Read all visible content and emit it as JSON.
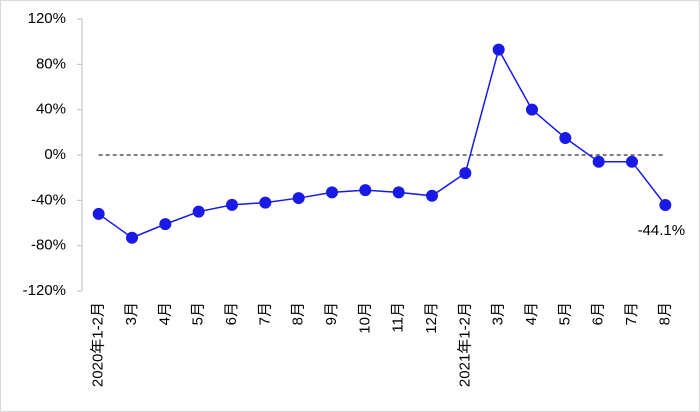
{
  "chart_data": {
    "type": "line",
    "categories": [
      "2020年1-2月",
      "3月",
      "4月",
      "5月",
      "6月",
      "7月",
      "8月",
      "9月",
      "10月",
      "11月",
      "12月",
      "2021年1-2月",
      "3月",
      "4月",
      "5月",
      "6月",
      "7月",
      "8月"
    ],
    "series": [
      {
        "color": "#1a1ae6",
        "values": [
          -52,
          -73,
          -61,
          -50,
          -44,
          -42,
          -38,
          -33,
          -31,
          -33,
          -36,
          -16,
          93,
          40,
          15,
          -6,
          -6,
          -44.1
        ],
        "value_labels": [
          null,
          null,
          null,
          null,
          null,
          null,
          null,
          null,
          null,
          null,
          null,
          null,
          null,
          null,
          null,
          null,
          null,
          "-44.1%"
        ]
      }
    ],
    "ylim": [
      -120,
      120
    ],
    "yticks": [
      {
        "value": -120,
        "label": "-120%"
      },
      {
        "value": -80,
        "label": "-80%"
      },
      {
        "value": -40,
        "label": "-40%"
      },
      {
        "value": 0,
        "label": "0%"
      },
      {
        "value": 40,
        "label": "40%"
      },
      {
        "value": 80,
        "label": "80%"
      },
      {
        "value": 120,
        "label": "120%"
      }
    ],
    "reference_line": 0,
    "grid": false
  }
}
